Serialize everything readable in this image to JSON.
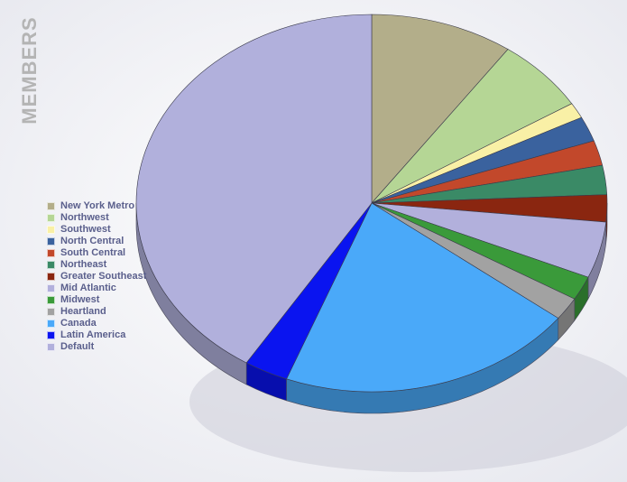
{
  "chart_data": {
    "type": "pie",
    "y_title": "MEMBERS",
    "three_d": true,
    "legend_position": "left",
    "slices": [
      {
        "label": "New York Metro",
        "value": 11,
        "color": "#b3ae8a"
      },
      {
        "label": "Northwest",
        "value": 7.1,
        "color": "#b5d695"
      },
      {
        "label": "Southwest",
        "value": 1.5,
        "color": "#f9f0a6"
      },
      {
        "label": "North Central",
        "value": 2.4,
        "color": "#3a629e"
      },
      {
        "label": "South Central",
        "value": 2.4,
        "color": "#c2482b"
      },
      {
        "label": "Northeast",
        "value": 2.8,
        "color": "#3a8a66"
      },
      {
        "label": "Greater Southeast",
        "value": 2.6,
        "color": "#8a2610"
      },
      {
        "label": "Mid Atlantic",
        "value": 5.4,
        "color": "#b2b0dc"
      },
      {
        "label": "Midwest",
        "value": 2.3,
        "color": "#3a9a3a"
      },
      {
        "label": "Heartland",
        "value": 2.2,
        "color": "#a2a2a2"
      },
      {
        "label": "Canada",
        "value": 22.9,
        "color": "#4aa9f9"
      },
      {
        "label": "Latin America",
        "value": 3.4,
        "color": "#0a14f0"
      },
      {
        "label": "Default",
        "value": 46.0,
        "color": "#b1b0dc"
      }
    ]
  }
}
